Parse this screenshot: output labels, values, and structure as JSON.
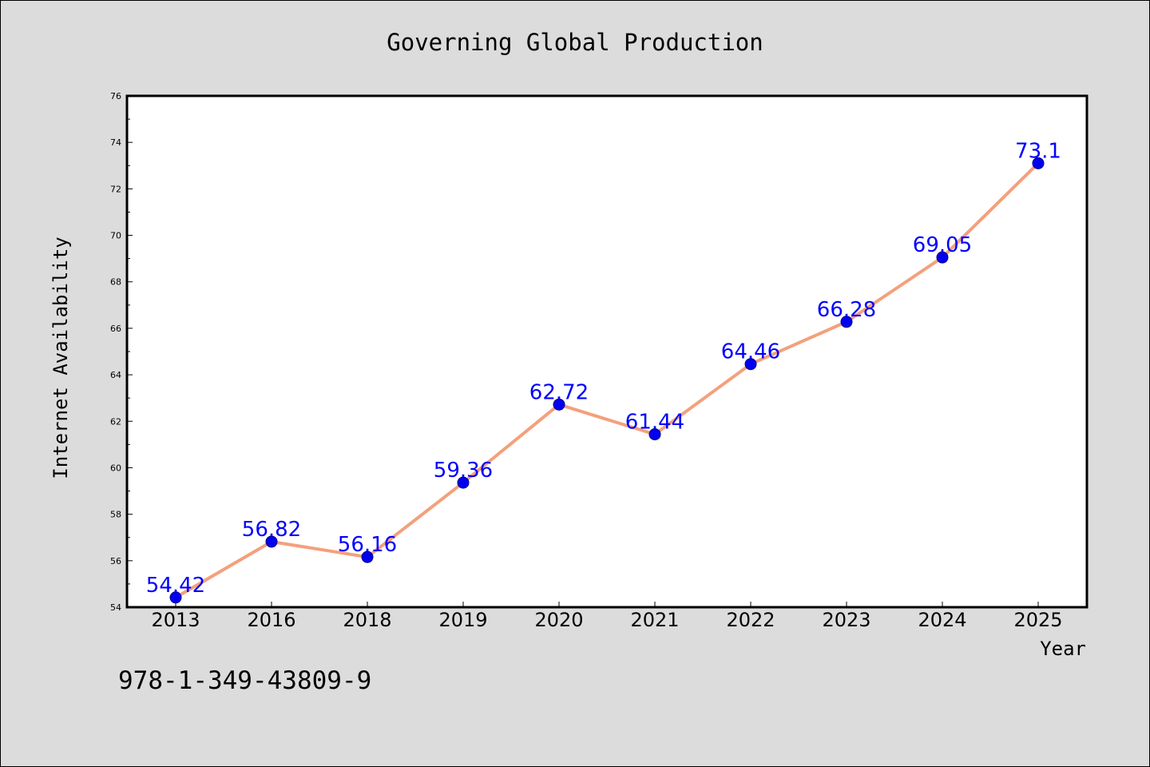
{
  "chart_data": {
    "type": "line",
    "title": "Governing Global Production",
    "xlabel": "Year",
    "ylabel": "Internet Availability",
    "categories": [
      "2013",
      "2016",
      "2018",
      "2019",
      "2020",
      "2021",
      "2022",
      "2023",
      "2024",
      "2025"
    ],
    "values": [
      54.42,
      56.82,
      56.16,
      59.36,
      62.72,
      61.44,
      64.46,
      66.28,
      69.05,
      73.1
    ],
    "value_labels": [
      "54.42",
      "56.82",
      "56.16",
      "59.36",
      "62.72",
      "61.44",
      "64.46",
      "66.28",
      "69.05",
      "73.1"
    ],
    "ylim": [
      54,
      76
    ],
    "yticks": [
      "54",
      "56",
      "58",
      "60",
      "62",
      "64",
      "66",
      "68",
      "70",
      "72",
      "74",
      "76"
    ],
    "grid": false,
    "line_color": "#f4a07c",
    "marker_color": "#0000ee",
    "label_color": "#0000ff"
  },
  "footer": {
    "isbn": "978-1-349-43809-9"
  }
}
